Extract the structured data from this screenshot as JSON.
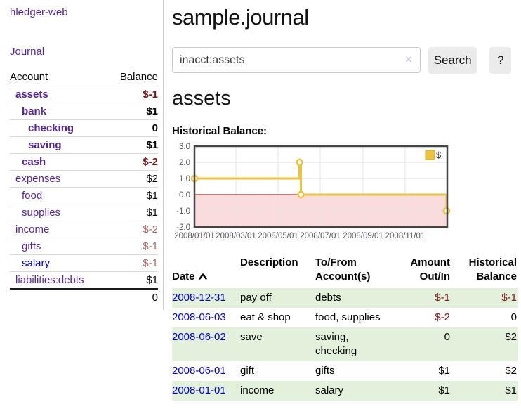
{
  "app": {
    "brand": "hledger-web",
    "nav": {
      "journal": "Journal"
    }
  },
  "sidebar": {
    "accounts": {
      "header_account": "Account",
      "header_balance": "Balance",
      "rows": [
        {
          "name": "assets",
          "balance": "$-1",
          "depth": 0,
          "bold": true,
          "neg": true,
          "unvisited": false
        },
        {
          "name": "bank",
          "balance": "$1",
          "depth": 1,
          "bold": true,
          "neg": false,
          "unvisited": false
        },
        {
          "name": "checking",
          "balance": "0",
          "depth": 2,
          "bold": true,
          "neg": false,
          "unvisited": false
        },
        {
          "name": "saving",
          "balance": "$1",
          "depth": 2,
          "bold": true,
          "neg": false,
          "unvisited": false
        },
        {
          "name": "cash",
          "balance": "$-2",
          "depth": 1,
          "bold": true,
          "neg": true,
          "unvisited": false
        },
        {
          "name": "expenses",
          "balance": "$2",
          "depth": 0,
          "bold": false,
          "neg": false,
          "unvisited": false
        },
        {
          "name": "food",
          "balance": "$1",
          "depth": 1,
          "bold": false,
          "neg": false,
          "unvisited": false
        },
        {
          "name": "supplies",
          "balance": "$1",
          "depth": 1,
          "bold": false,
          "neg": false,
          "unvisited": false
        },
        {
          "name": "income",
          "balance": "$-2",
          "depth": 0,
          "bold": false,
          "neg": true,
          "unvisited": false
        },
        {
          "name": "gifts",
          "balance": "$-1",
          "depth": 1,
          "bold": false,
          "neg": true,
          "unvisited": false
        },
        {
          "name": "salary",
          "balance": "$-1",
          "depth": 1,
          "bold": false,
          "neg": true,
          "unvisited": true
        },
        {
          "name": "liabilities:debts",
          "balance": "$1",
          "depth": 0,
          "bold": false,
          "neg": false,
          "unvisited": false
        }
      ],
      "total": "0"
    }
  },
  "main": {
    "title": "sample.journal",
    "search": {
      "value": "inacct:assets",
      "clear": "×",
      "submit": "Search",
      "help": "?"
    },
    "heading": "assets",
    "chart_title": "Historical Balance:"
  },
  "chart_data": {
    "type": "line",
    "step": true,
    "title": "Historical Balance",
    "series": [
      {
        "name": "$",
        "color": "#edc240",
        "points": [
          {
            "x": "2008-01-01",
            "y": 1
          },
          {
            "x": "2008-06-01",
            "y": 2
          },
          {
            "x": "2008-06-03",
            "y": 0
          },
          {
            "x": "2008-12-31",
            "y": -1
          }
        ]
      }
    ],
    "xlim": [
      "2008-01-01",
      "2009-01-01"
    ],
    "ylim": [
      -2,
      3
    ],
    "x_ticks": [
      {
        "x": "2008-01-01",
        "label": "2008/01/01"
      },
      {
        "x": "2008-03-01",
        "label": "2008/03/01"
      },
      {
        "x": "2008-05-01",
        "label": "2008/05/01"
      },
      {
        "x": "2008-07-01",
        "label": "2008/07/01"
      },
      {
        "x": "2008-09-01",
        "label": "2008/09/01"
      },
      {
        "x": "2008-11-01",
        "label": "2008/11/01"
      }
    ],
    "y_ticks": [
      {
        "y": 3,
        "label": "3.0"
      },
      {
        "y": 2,
        "label": "2.0"
      },
      {
        "y": 1,
        "label": "1.0"
      },
      {
        "y": 0,
        "label": "0.0"
      },
      {
        "y": -1,
        "label": "-1.0"
      },
      {
        "y": -2,
        "label": "-2.0"
      }
    ],
    "legend": {
      "label": "$",
      "position": "top-right"
    },
    "grid": true,
    "colors": {
      "line": "#edc240",
      "marker_fill": "#ffffff",
      "grid_line": "#e3e3e3",
      "plot_border": "#444444",
      "zero_line": "#8b0000",
      "negative_region_fill": "#fadcdc",
      "tick_label": "#545454",
      "legend_square_border": "#cfa832"
    }
  },
  "register": {
    "headers": {
      "date": "Date",
      "description": "Description",
      "tofrom": "To/From\nAccount(s)",
      "amount": "Amount\nOut/In",
      "balance": "Historical\nBalance"
    },
    "sort": {
      "column": "date",
      "direction": "ascending",
      "icon": "caret-up"
    },
    "rows": [
      {
        "date": "2008-12-31",
        "description": "pay off",
        "tofrom": "debts",
        "amount": "$-1",
        "balance": "$-1",
        "amount_neg": true,
        "balance_neg": true
      },
      {
        "date": "2008-06-03",
        "description": "eat & shop",
        "tofrom": "food, supplies",
        "amount": "$-2",
        "balance": "0",
        "amount_neg": true,
        "balance_neg": false
      },
      {
        "date": "2008-06-02",
        "description": "save",
        "tofrom": "saving, checking",
        "amount": "0",
        "balance": "$2",
        "amount_neg": false,
        "balance_neg": false
      },
      {
        "date": "2008-06-01",
        "description": "gift",
        "tofrom": "gifts",
        "amount": "$1",
        "balance": "$2",
        "amount_neg": false,
        "balance_neg": false
      },
      {
        "date": "2008-01-01",
        "description": "income",
        "tofrom": "salary",
        "amount": "$1",
        "balance": "$1",
        "amount_neg": false,
        "balance_neg": false
      }
    ]
  },
  "colors": {
    "link_purple": "#54249c",
    "link_blue": "#0000cc",
    "negative": "#801515",
    "negative_muted": "#b06565",
    "row_stripe_green": "#e2f0dc",
    "accent_yellow": "#edc240"
  }
}
